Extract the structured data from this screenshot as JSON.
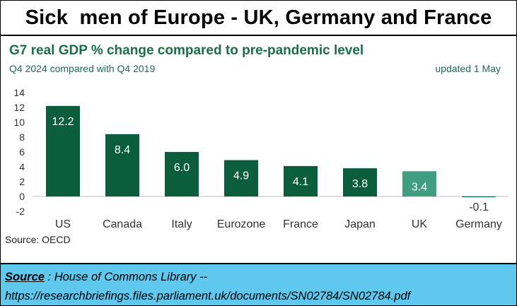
{
  "banner": {
    "title": "Sick  men of Europe - UK, Germany and France"
  },
  "chart_data": {
    "type": "bar",
    "title": "G7 real GDP % change compared to pre-pandemic level",
    "subtitle": "Q4 2024 compared with Q4 2019",
    "updated": "updated 1 May",
    "source": "Source: OECD",
    "categories": [
      "US",
      "Canada",
      "Italy",
      "Eurozone",
      "France",
      "Japan",
      "UK",
      "Germany"
    ],
    "values": [
      12.2,
      8.4,
      6.0,
      4.9,
      4.1,
      3.8,
      3.4,
      -0.1
    ],
    "labels": [
      "12.2",
      "8.4",
      "6.0",
      "4.9",
      "4.1",
      "3.8",
      "3.4",
      "-0.1"
    ],
    "ylim": [
      -2,
      14
    ],
    "yticks": [
      -2,
      0,
      2,
      4,
      6,
      8,
      10,
      12,
      14
    ],
    "colors": {
      "default": "#0b5e3c",
      "highlight": "#3f9e82",
      "label_inside": "#ffffff",
      "label_outside": "#333333"
    },
    "highlight": [
      "UK"
    ]
  },
  "footer": {
    "source_label": "Source",
    "source_sep": " : ",
    "source_text": "House of Commons Library --",
    "url": "https://researchbriefings.files.parliament.uk/documents/SN02784/SN02784.pdf"
  }
}
